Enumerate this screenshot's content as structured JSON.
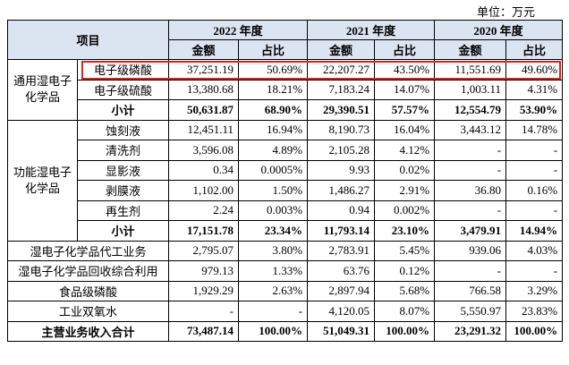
{
  "header": {
    "unit": "单位：万元"
  },
  "table": {
    "item_label": "项目",
    "years": [
      "2022 年度",
      "2021 年度",
      "2020 年度"
    ],
    "amount_label": "金额",
    "share_label": "占比",
    "groups": [
      {
        "label": "通用湿电子化学品",
        "rows": [
          {
            "item": "电子级磷酸",
            "cells": [
              "37,251.19",
              "50.69%",
              "22,207.27",
              "43.50%",
              "11,551.69",
              "49.60%"
            ]
          },
          {
            "item": "电子级硫酸",
            "cells": [
              "13,380.68",
              "18.21%",
              "7,183.24",
              "14.07%",
              "1,003.11",
              "4.31%"
            ]
          },
          {
            "item": "小计",
            "cells": [
              "50,631.87",
              "68.90%",
              "29,390.51",
              "57.57%",
              "12,554.79",
              "53.90%"
            ]
          }
        ]
      },
      {
        "label": "功能湿电子化学品",
        "rows": [
          {
            "item": "蚀刻液",
            "cells": [
              "12,451.11",
              "16.94%",
              "8,190.73",
              "16.04%",
              "3,443.12",
              "14.78%"
            ]
          },
          {
            "item": "清洗剂",
            "cells": [
              "3,596.08",
              "4.89%",
              "2,105.28",
              "4.12%",
              "-",
              "-"
            ]
          },
          {
            "item": "显影液",
            "cells": [
              "0.34",
              "0.0005%",
              "9.93",
              "0.02%",
              "-",
              "-"
            ]
          },
          {
            "item": "剥膜液",
            "cells": [
              "1,102.00",
              "1.50%",
              "1,486.27",
              "2.91%",
              "36.80",
              "0.16%"
            ]
          },
          {
            "item": "再生剂",
            "cells": [
              "2.24",
              "0.003%",
              "0.94",
              "0.002%",
              "-",
              "-"
            ]
          },
          {
            "item": "小计",
            "cells": [
              "17,151.78",
              "23.34%",
              "11,793.14",
              "23.10%",
              "3,479.91",
              "14.94%"
            ]
          }
        ]
      }
    ],
    "rows": [
      {
        "item": "湿电子化学品代工业务",
        "cells": [
          "2,795.07",
          "3.80%",
          "2,783.91",
          "5.45%",
          "939.06",
          "4.03%"
        ]
      },
      {
        "item": "湿电子化学品回收综合利用",
        "cells": [
          "979.13",
          "1.33%",
          "63.76",
          "0.12%",
          "-",
          "-"
        ]
      },
      {
        "item": "食品级磷酸",
        "cells": [
          "1,929.29",
          "2.63%",
          "2,897.94",
          "5.68%",
          "766.58",
          "3.29%"
        ]
      },
      {
        "item": "工业双氧水",
        "cells": [
          "-",
          "-",
          "4,120.05",
          "8.07%",
          "5,550.97",
          "23.83%"
        ]
      }
    ],
    "total": {
      "item": "主营业务收入合计",
      "cells": [
        "73,487.14",
        "100.00%",
        "51,049.31",
        "100.00%",
        "23,291.32",
        "100.00%"
      ]
    }
  }
}
